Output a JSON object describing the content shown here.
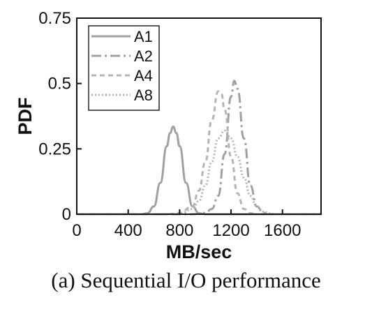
{
  "caption": "(a) Sequential I/O performance",
  "chart_data": {
    "type": "line",
    "xlabel": "MB/sec",
    "ylabel": "PDF",
    "xlim": [
      0,
      1900
    ],
    "ylim": [
      0,
      0.75
    ],
    "xticks": [
      0,
      400,
      800,
      1200,
      1600
    ],
    "yticks": [
      0,
      0.25,
      0.5,
      0.75
    ],
    "ytick_labels": [
      "0",
      "0.25",
      "0.5",
      "0.75"
    ],
    "grid": false,
    "legend_position": "top-left",
    "series": [
      {
        "name": "A1",
        "style": "solid",
        "color": "#a0a0a0",
        "x": [
          0,
          500,
          550,
          600,
          650,
          700,
          725,
          750,
          775,
          800,
          850,
          900,
          950,
          1000,
          1900
        ],
        "y": [
          0,
          0.0,
          0.004,
          0.03,
          0.12,
          0.26,
          0.31,
          0.335,
          0.31,
          0.26,
          0.12,
          0.03,
          0.004,
          0.0,
          0
        ]
      },
      {
        "name": "A2",
        "style": "dashdot",
        "color": "#a0a0a0",
        "x": [
          0,
          900,
          1000,
          1050,
          1100,
          1150,
          1200,
          1225,
          1250,
          1300,
          1350,
          1400,
          1450,
          1500,
          1900
        ],
        "y": [
          0,
          0.0,
          0.005,
          0.02,
          0.07,
          0.23,
          0.45,
          0.51,
          0.48,
          0.29,
          0.11,
          0.03,
          0.006,
          0.0,
          0
        ]
      },
      {
        "name": "A4",
        "style": "dashed",
        "color": "#b4b4b4",
        "x": [
          0,
          700,
          800,
          900,
          950,
          1000,
          1050,
          1100,
          1125,
          1150,
          1200,
          1250,
          1300,
          1350,
          1400,
          1900
        ],
        "y": [
          0,
          0.0,
          0.005,
          0.03,
          0.09,
          0.2,
          0.36,
          0.47,
          0.46,
          0.4,
          0.22,
          0.08,
          0.02,
          0.004,
          0.0,
          0
        ]
      },
      {
        "name": "A8",
        "style": "dotted",
        "color": "#b4b4b4",
        "x": [
          0,
          800,
          900,
          950,
          1000,
          1050,
          1100,
          1150,
          1200,
          1250,
          1300,
          1350,
          1400,
          1450,
          1500,
          1550,
          1900
        ],
        "y": [
          0,
          0.0,
          0.02,
          0.05,
          0.11,
          0.2,
          0.29,
          0.32,
          0.29,
          0.22,
          0.14,
          0.07,
          0.03,
          0.01,
          0.003,
          0.0,
          0
        ]
      }
    ]
  }
}
